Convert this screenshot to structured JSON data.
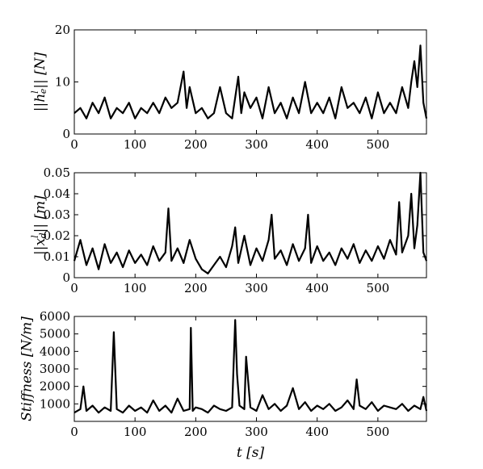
{
  "chart_data": [
    {
      "type": "line",
      "ylabel": "||h_e^l|| [N]",
      "xlim": [
        0,
        580
      ],
      "ylim": [
        0,
        20
      ],
      "xticks": [
        0,
        100,
        200,
        300,
        400,
        500
      ],
      "yticks": [
        0,
        10,
        20
      ],
      "grid": false,
      "series": [
        {
          "x": [
            0,
            10,
            20,
            30,
            40,
            50,
            60,
            70,
            80,
            90,
            100,
            110,
            120,
            130,
            140,
            150,
            160,
            170,
            180,
            185,
            190,
            200,
            210,
            220,
            230,
            240,
            250,
            260,
            270,
            275,
            280,
            290,
            300,
            310,
            320,
            330,
            340,
            350,
            360,
            370,
            380,
            390,
            400,
            410,
            420,
            430,
            440,
            450,
            460,
            470,
            480,
            490,
            500,
            510,
            520,
            530,
            540,
            550,
            555,
            560,
            565,
            570,
            575,
            580
          ],
          "values": [
            4,
            5,
            3,
            6,
            4,
            7,
            3,
            5,
            4,
            6,
            3,
            5,
            4,
            6,
            4,
            7,
            5,
            6,
            12,
            5,
            9,
            4,
            5,
            3,
            4,
            9,
            4,
            3,
            11,
            4,
            8,
            5,
            7,
            3,
            9,
            4,
            6,
            3,
            7,
            4,
            10,
            4,
            6,
            4,
            7,
            3,
            9,
            5,
            6,
            4,
            7,
            3,
            8,
            4,
            6,
            4,
            9,
            5,
            10,
            14,
            9,
            17,
            6,
            3
          ]
        }
      ]
    },
    {
      "type": "line",
      "ylabel": "||x_d^l|| [m]",
      "xlim": [
        0,
        580
      ],
      "ylim": [
        0,
        0.05
      ],
      "xticks": [
        0,
        100,
        200,
        300,
        400,
        500
      ],
      "yticks": [
        0,
        0.01,
        0.02,
        0.03,
        0.04,
        0.05
      ],
      "grid": false,
      "series": [
        {
          "x": [
            0,
            10,
            20,
            30,
            40,
            50,
            60,
            70,
            80,
            90,
            100,
            110,
            120,
            130,
            140,
            150,
            155,
            160,
            170,
            180,
            190,
            200,
            210,
            220,
            230,
            240,
            250,
            260,
            265,
            270,
            280,
            290,
            300,
            310,
            320,
            325,
            330,
            340,
            350,
            360,
            370,
            380,
            385,
            390,
            400,
            410,
            420,
            430,
            440,
            450,
            460,
            470,
            480,
            490,
            500,
            510,
            520,
            530,
            535,
            540,
            550,
            555,
            560,
            565,
            570,
            575,
            580
          ],
          "values": [
            0.008,
            0.018,
            0.006,
            0.014,
            0.004,
            0.016,
            0.007,
            0.012,
            0.005,
            0.013,
            0.007,
            0.011,
            0.006,
            0.015,
            0.008,
            0.012,
            0.033,
            0.008,
            0.014,
            0.007,
            0.018,
            0.009,
            0.004,
            0.002,
            0.006,
            0.01,
            0.005,
            0.015,
            0.024,
            0.007,
            0.02,
            0.006,
            0.014,
            0.008,
            0.018,
            0.03,
            0.009,
            0.013,
            0.006,
            0.016,
            0.008,
            0.014,
            0.03,
            0.007,
            0.015,
            0.008,
            0.012,
            0.006,
            0.014,
            0.009,
            0.016,
            0.007,
            0.013,
            0.008,
            0.015,
            0.009,
            0.018,
            0.011,
            0.036,
            0.012,
            0.02,
            0.04,
            0.014,
            0.025,
            0.05,
            0.012,
            0.008
          ]
        }
      ]
    },
    {
      "type": "line",
      "xlabel": "t [s]",
      "ylabel": "Stiffness [N/m]",
      "xlim": [
        0,
        580
      ],
      "ylim": [
        0,
        6000
      ],
      "xticks": [
        0,
        100,
        200,
        300,
        400,
        500
      ],
      "yticks": [
        1000,
        2000,
        3000,
        4000,
        5000,
        6000
      ],
      "grid": false,
      "series": [
        {
          "x": [
            0,
            10,
            15,
            20,
            30,
            40,
            50,
            60,
            65,
            70,
            80,
            90,
            100,
            110,
            120,
            130,
            140,
            150,
            160,
            170,
            180,
            190,
            192,
            195,
            200,
            210,
            220,
            230,
            240,
            250,
            260,
            265,
            268,
            272,
            280,
            283,
            290,
            300,
            310,
            320,
            330,
            340,
            350,
            360,
            370,
            380,
            390,
            400,
            410,
            420,
            430,
            440,
            450,
            460,
            465,
            470,
            480,
            490,
            500,
            510,
            520,
            530,
            540,
            550,
            560,
            570,
            575,
            580
          ],
          "values": [
            500,
            700,
            2000,
            600,
            900,
            500,
            800,
            600,
            5100,
            700,
            500,
            900,
            600,
            800,
            500,
            1200,
            600,
            900,
            500,
            1300,
            600,
            700,
            5350,
            600,
            800,
            700,
            500,
            900,
            700,
            600,
            800,
            5800,
            2700,
            900,
            700,
            3700,
            800,
            600,
            1500,
            700,
            1000,
            600,
            900,
            1900,
            700,
            1100,
            600,
            900,
            700,
            1000,
            600,
            800,
            1200,
            700,
            2400,
            900,
            700,
            1100,
            600,
            900,
            800,
            700,
            1000,
            600,
            900,
            700,
            1400,
            600
          ]
        }
      ]
    }
  ]
}
